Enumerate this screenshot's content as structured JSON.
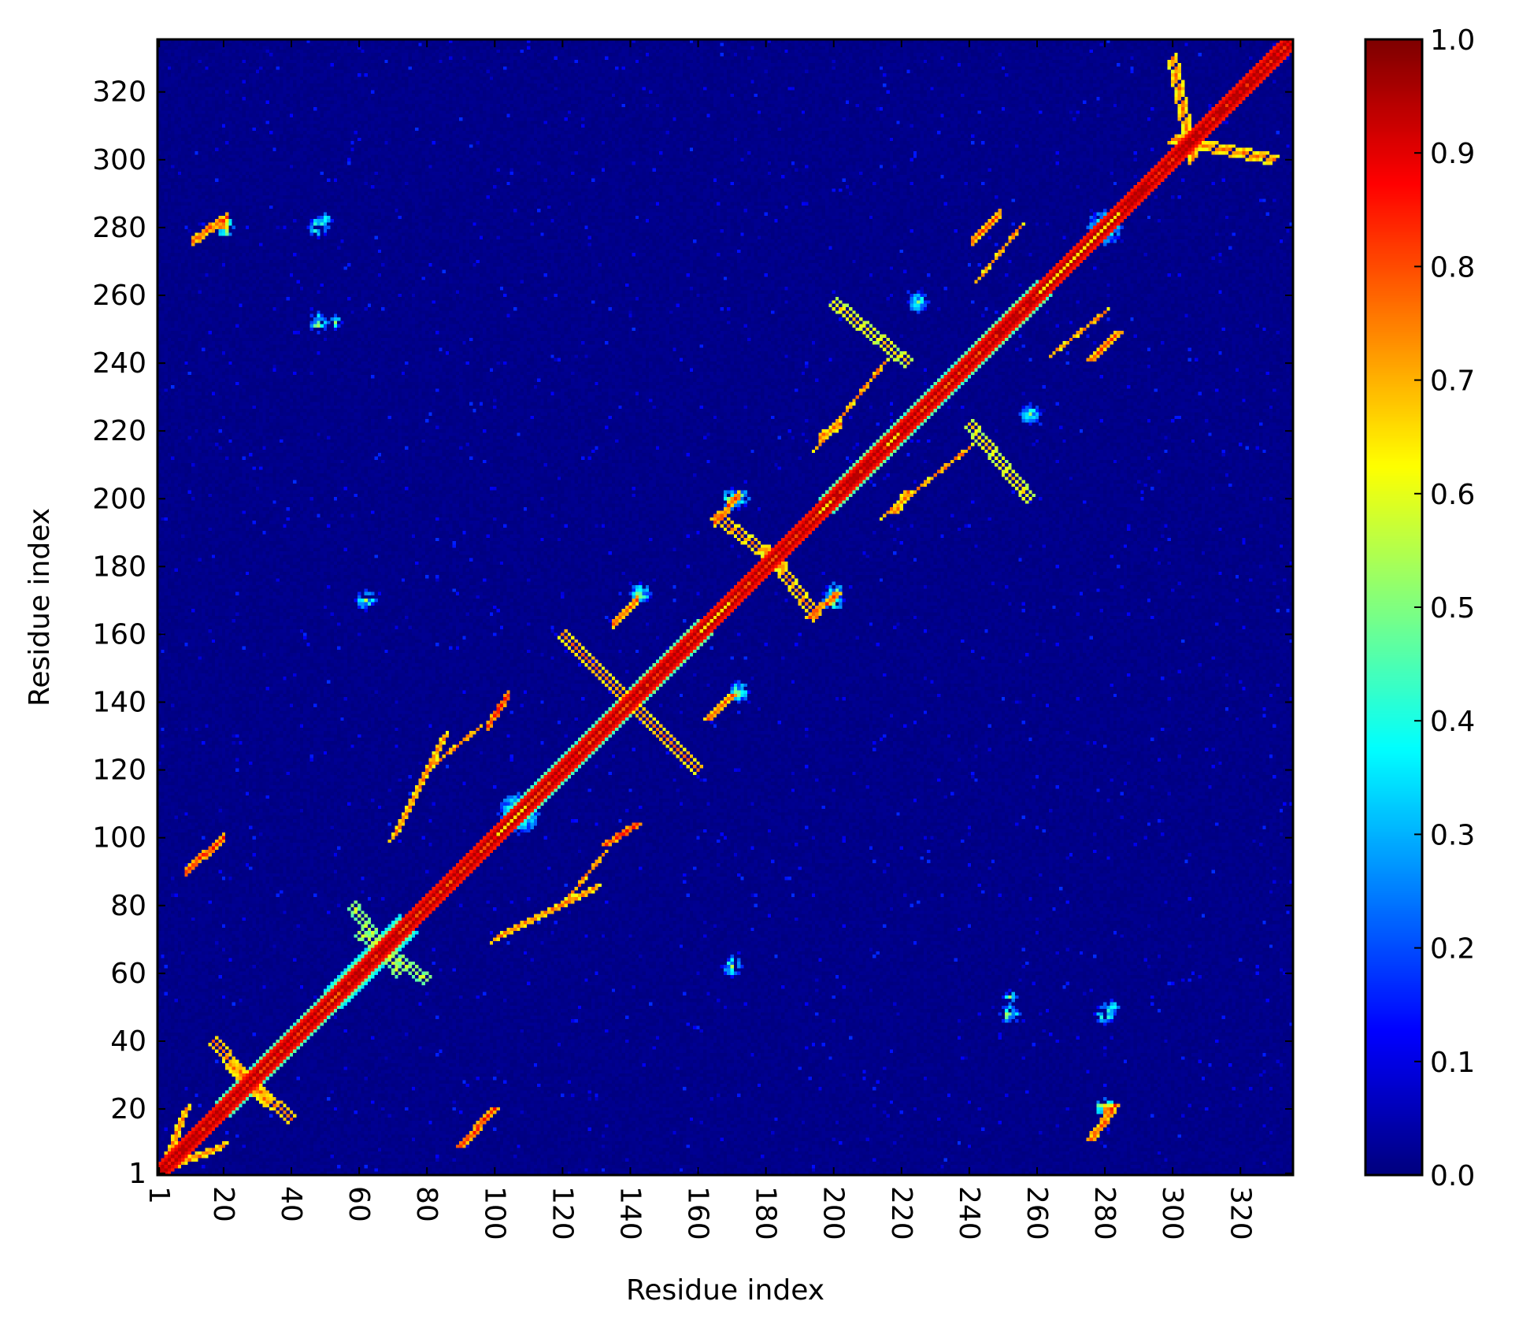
{
  "chart_data": {
    "type": "heatmap",
    "title": "",
    "xlabel": "Residue index",
    "ylabel": "Residue index",
    "xlim": [
      1,
      335
    ],
    "ylim": [
      1,
      335
    ],
    "x_ticks": [
      1,
      20,
      40,
      60,
      80,
      100,
      120,
      140,
      160,
      180,
      200,
      220,
      240,
      260,
      280,
      300,
      320
    ],
    "y_ticks": [
      1,
      20,
      40,
      60,
      80,
      100,
      120,
      140,
      160,
      180,
      200,
      220,
      240,
      260,
      280,
      300,
      320
    ],
    "x_tick_labels": [
      "1",
      "20",
      "40",
      "60",
      "80",
      "100",
      "120",
      "140",
      "160",
      "180",
      "200",
      "220",
      "240",
      "260",
      "280",
      "300",
      "320"
    ],
    "y_tick_labels": [
      "1",
      "20",
      "40",
      "60",
      "80",
      "100",
      "120",
      "140",
      "160",
      "180",
      "200",
      "220",
      "240",
      "260",
      "280",
      "300",
      "320"
    ],
    "x_tick_rotation": "rotated 270°, reading top to bottom",
    "colormap": "jet",
    "colorbar": {
      "range": [
        0.0,
        1.0
      ],
      "ticks": [
        0.0,
        0.1,
        0.2,
        0.3,
        0.4,
        0.5,
        0.6,
        0.7,
        0.8,
        0.9,
        1.0
      ],
      "tick_labels": [
        "0.0",
        "0.1",
        "0.2",
        "0.3",
        "0.4",
        "0.5",
        "0.6",
        "0.7",
        "0.8",
        "0.9",
        "1.0"
      ],
      "position": "right"
    },
    "background_value": 0.0,
    "symmetric": true,
    "diagonal": {
      "value": 1.0,
      "halfwidth": 3
    },
    "bands": [
      {
        "start": [
          1,
          1
        ],
        "end": [
          22,
          22
        ],
        "orientation": "parallel",
        "value": 0.95,
        "halfwidth": 3
      },
      {
        "start": [
          22,
          22
        ],
        "end": [
          55,
          55
        ],
        "orientation": "parallel",
        "value": 0.9,
        "halfwidth": 4
      },
      {
        "start": [
          55,
          55
        ],
        "end": [
          72,
          72
        ],
        "orientation": "parallel",
        "value": 0.95,
        "halfwidth": 5
      },
      {
        "start": [
          72,
          72
        ],
        "end": [
          100,
          100
        ],
        "orientation": "parallel",
        "value": 0.9,
        "halfwidth": 3
      },
      {
        "start": [
          110,
          110
        ],
        "end": [
          140,
          140
        ],
        "orientation": "parallel",
        "value": 0.9,
        "halfwidth": 4
      },
      {
        "start": [
          140,
          140
        ],
        "end": [
          160,
          160
        ],
        "orientation": "parallel",
        "value": 0.95,
        "halfwidth": 4
      },
      {
        "start": [
          170,
          170
        ],
        "end": [
          195,
          195
        ],
        "orientation": "parallel",
        "value": 0.9,
        "halfwidth": 3
      },
      {
        "start": [
          200,
          200
        ],
        "end": [
          215,
          215
        ],
        "orientation": "parallel",
        "value": 0.95,
        "halfwidth": 4
      },
      {
        "start": [
          220,
          220
        ],
        "end": [
          245,
          245
        ],
        "orientation": "parallel",
        "value": 0.9,
        "halfwidth": 4
      },
      {
        "start": [
          245,
          245
        ],
        "end": [
          260,
          260
        ],
        "orientation": "parallel",
        "value": 0.95,
        "halfwidth": 4
      },
      {
        "start": [
          285,
          285
        ],
        "end": [
          335,
          335
        ],
        "orientation": "parallel",
        "value": 0.95,
        "halfwidth": 3
      },
      {
        "start": [
          90,
          9
        ],
        "end": [
          100,
          20
        ],
        "orientation": "parallel",
        "value": 0.9,
        "halfwidth": 1
      },
      {
        "start": [
          133,
          98
        ],
        "end": [
          142,
          104
        ],
        "orientation": "parallel",
        "value": 0.9,
        "halfwidth": 1
      },
      {
        "start": [
          163,
          135
        ],
        "end": [
          170,
          142
        ],
        "orientation": "parallel",
        "value": 0.85,
        "halfwidth": 1
      },
      {
        "start": [
          193,
          165
        ],
        "end": [
          201,
          172
        ],
        "orientation": "parallel",
        "value": 0.85,
        "halfwidth": 1
      },
      {
        "start": [
          218,
          196
        ],
        "end": [
          222,
          202
        ],
        "orientation": "parallel",
        "value": 0.8,
        "halfwidth": 1
      },
      {
        "start": [
          276,
          241
        ],
        "end": [
          284,
          249
        ],
        "orientation": "parallel",
        "value": 0.85,
        "halfwidth": 1
      },
      {
        "start": [
          276,
          11
        ],
        "end": [
          283,
          21
        ],
        "orientation": "parallel",
        "value": 0.85,
        "halfwidth": 1
      },
      {
        "start": [
          20,
          9
        ],
        "end": [
          2,
          2
        ],
        "orientation": "anti",
        "value": 0.8,
        "halfwidth": 1
      },
      {
        "start": [
          22,
          33
        ],
        "end": [
          40,
          17
        ],
        "orientation": "anti",
        "value": 0.8,
        "halfwidth": 1
      },
      {
        "start": [
          60,
          72
        ],
        "end": [
          80,
          58
        ],
        "orientation": "anti",
        "value": 0.6,
        "halfwidth": 1
      },
      {
        "start": [
          100,
          70
        ],
        "end": [
          130,
          85
        ],
        "orientation": "anti",
        "value": 0.8,
        "halfwidth": 1
      },
      {
        "start": [
          80,
          120
        ],
        "end": [
          95,
          132
        ],
        "orientation": "anti",
        "value": 0.8,
        "halfwidth": 1
      },
      {
        "start": [
          140,
          140
        ],
        "end": [
          160,
          120
        ],
        "orientation": "anti",
        "value": 0.8,
        "halfwidth": 1
      },
      {
        "start": [
          165,
          195
        ],
        "end": [
          185,
          180
        ],
        "orientation": "anti",
        "value": 0.8,
        "halfwidth": 1
      },
      {
        "start": [
          195,
          215
        ],
        "end": [
          215,
          240
        ],
        "orientation": "anti",
        "value": 0.8,
        "halfwidth": 1
      },
      {
        "start": [
          240,
          222
        ],
        "end": [
          258,
          200
        ],
        "orientation": "anti",
        "value": 0.7,
        "halfwidth": 1
      },
      {
        "start": [
          243,
          265
        ],
        "end": [
          255,
          280
        ],
        "orientation": "anti",
        "value": 0.8,
        "halfwidth": 1
      },
      {
        "start": [
          300,
          306
        ],
        "end": [
          330,
          300
        ],
        "orientation": "anti",
        "value": 0.8,
        "halfwidth": 1
      }
    ],
    "patches": [
      {
        "x": 107,
        "y": 107,
        "value": 0.45,
        "radius": 6
      },
      {
        "x": 280,
        "y": 280,
        "value": 0.45,
        "radius": 5
      },
      {
        "x": 48,
        "y": 252,
        "value": 0.5,
        "radius": 3
      },
      {
        "x": 170,
        "y": 62,
        "value": 0.45,
        "radius": 3
      },
      {
        "x": 282,
        "y": 50,
        "value": 0.6,
        "radius": 2
      },
      {
        "x": 252,
        "y": 53,
        "value": 0.4,
        "radius": 2
      },
      {
        "x": 20,
        "y": 280,
        "value": 0.7,
        "radius": 3
      },
      {
        "x": 48,
        "y": 280,
        "value": 0.45,
        "radius": 3
      },
      {
        "x": 200,
        "y": 170,
        "value": 0.5,
        "radius": 3
      },
      {
        "x": 172,
        "y": 200,
        "value": 0.5,
        "radius": 3
      },
      {
        "x": 225,
        "y": 258,
        "value": 0.4,
        "radius": 3
      },
      {
        "x": 258,
        "y": 225,
        "value": 0.4,
        "radius": 3
      },
      {
        "x": 143,
        "y": 172,
        "value": 0.45,
        "radius": 3
      },
      {
        "x": 172,
        "y": 143,
        "value": 0.45,
        "radius": 3
      }
    ]
  }
}
